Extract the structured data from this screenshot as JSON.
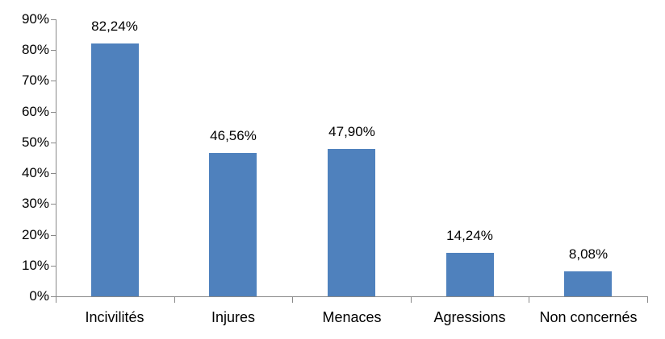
{
  "background_color": "#FFFFFF",
  "chart_data": {
    "type": "bar",
    "title": "",
    "xlabel": "",
    "ylabel": "",
    "categories": [
      "Incivilités",
      "Injures",
      "Menaces",
      "Agressions",
      "Non concernés"
    ],
    "values": [
      82.24,
      46.56,
      47.9,
      14.24,
      8.08
    ],
    "value_labels": [
      "82,24%",
      "46,56%",
      "47,90%",
      "14,24%",
      "8,08%"
    ],
    "y_tick_labels": [
      "0%",
      "10%",
      "20%",
      "30%",
      "40%",
      "50%",
      "60%",
      "70%",
      "80%",
      "90%"
    ],
    "y_tick_values": [
      0,
      10,
      20,
      30,
      40,
      50,
      60,
      70,
      80,
      90
    ],
    "ylim": [
      0,
      90
    ],
    "grid": false,
    "legend": false,
    "bar_color": "#4F81BD",
    "axis_color": "#898989",
    "label_color": "#000000"
  }
}
